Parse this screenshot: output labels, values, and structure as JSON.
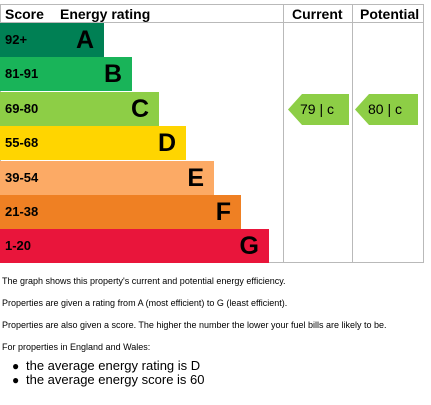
{
  "headers": {
    "score": "Score",
    "energy_rating": "Energy rating",
    "current": "Current",
    "potential": "Potential"
  },
  "bands": [
    {
      "score": "92+",
      "letter": "A",
      "color": "#008054"
    },
    {
      "score": "81-91",
      "letter": "B",
      "color": "#19b459"
    },
    {
      "score": "69-80",
      "letter": "C",
      "color": "#8dce46"
    },
    {
      "score": "55-68",
      "letter": "D",
      "color": "#ffd500"
    },
    {
      "score": "39-54",
      "letter": "E",
      "color": "#fcaa65"
    },
    {
      "score": "21-38",
      "letter": "F",
      "color": "#ef8023"
    },
    {
      "score": "1-20",
      "letter": "G",
      "color": "#e9153b"
    }
  ],
  "current": {
    "label": "79 |  c",
    "score": 79,
    "rating": "C",
    "color": "#8dce46"
  },
  "potential": {
    "label": "80 |  c",
    "score": 80,
    "rating": "C",
    "color": "#8dce46"
  },
  "notes": {
    "p1": "The graph shows this property's current and potential energy efficiency.",
    "p2": "Properties are given a rating from A (most efficient) to G (least efficient).",
    "p3": "Properties are also given a score. The higher the number the lower your fuel bills are likely to be.",
    "p4": "For properties in England and Wales:",
    "bullets": [
      "the average energy rating is D",
      "the average energy score is 60"
    ]
  }
}
